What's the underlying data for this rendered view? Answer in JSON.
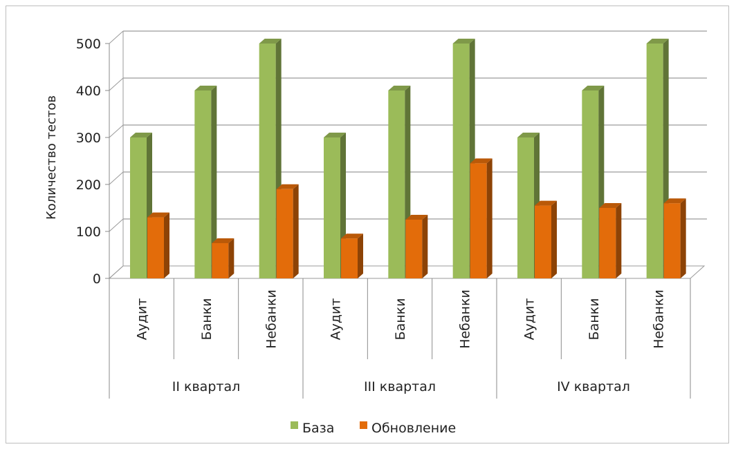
{
  "chart_data": {
    "type": "bar",
    "ylabel": "Количество тестов",
    "ylim": [
      0,
      500
    ],
    "yticks": [
      0,
      100,
      200,
      300,
      400,
      500
    ],
    "grid": true,
    "legend_position": "bottom",
    "categories": [
      "Аудит",
      "Банки",
      "Небанки",
      "Аудит",
      "Банки",
      "Небанки",
      "Аудит",
      "Банки",
      "Небанки"
    ],
    "groups": [
      {
        "label": "II квартал",
        "span": 3
      },
      {
        "label": "III квартал",
        "span": 3
      },
      {
        "label": "IV квартал",
        "span": 3
      }
    ],
    "series": [
      {
        "name": "База",
        "color": "#9bbb59",
        "values": [
          300,
          400,
          500,
          300,
          400,
          500,
          300,
          400,
          500
        ]
      },
      {
        "name": "Обновление",
        "color": "#e36c0a",
        "values": [
          130,
          75,
          190,
          85,
          125,
          245,
          155,
          150,
          160
        ]
      }
    ]
  }
}
